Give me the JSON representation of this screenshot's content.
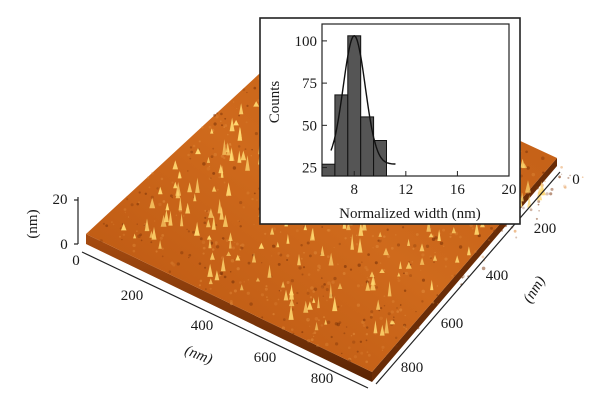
{
  "chart_data": [
    {
      "type": "surface",
      "z_axis": {
        "label": "(nm)",
        "ticks": [
          "0",
          "20"
        ],
        "range": [
          0,
          20
        ]
      },
      "x_axis": {
        "label": "(nm)",
        "ticks": [
          "0",
          "200",
          "400",
          "600",
          "800"
        ],
        "range": [
          0,
          900
        ]
      },
      "y_axis": {
        "label": "(nm)",
        "ticks": [
          "0",
          "200",
          "400",
          "600",
          "800"
        ],
        "range": [
          0,
          900
        ]
      },
      "colors": {
        "base": "#c8641a",
        "dark": "#7a3208",
        "peak": "#ffd870"
      }
    },
    {
      "type": "bar",
      "xlabel": "Normalized width (nm)",
      "ylabel": "Counts",
      "xlim": [
        5.5,
        20
      ],
      "ylim": [
        20,
        110
      ],
      "xticks": [
        "8",
        "12",
        "16",
        "20"
      ],
      "yticks": [
        "25",
        "50",
        "75",
        "100"
      ],
      "bins": [
        {
          "x": 6.0,
          "count": 27
        },
        {
          "x": 7.0,
          "count": 68
        },
        {
          "x": 8.0,
          "count": 103
        },
        {
          "x": 9.0,
          "count": 55
        },
        {
          "x": 10.0,
          "count": 41
        }
      ],
      "bin_width": 1,
      "fit": {
        "type": "gaussian",
        "center": 8.0,
        "amplitude": 103,
        "sigma": 0.85,
        "offset": 27,
        "x_range": [
          6.2,
          11.2
        ]
      },
      "bar_color": "#555555"
    }
  ]
}
